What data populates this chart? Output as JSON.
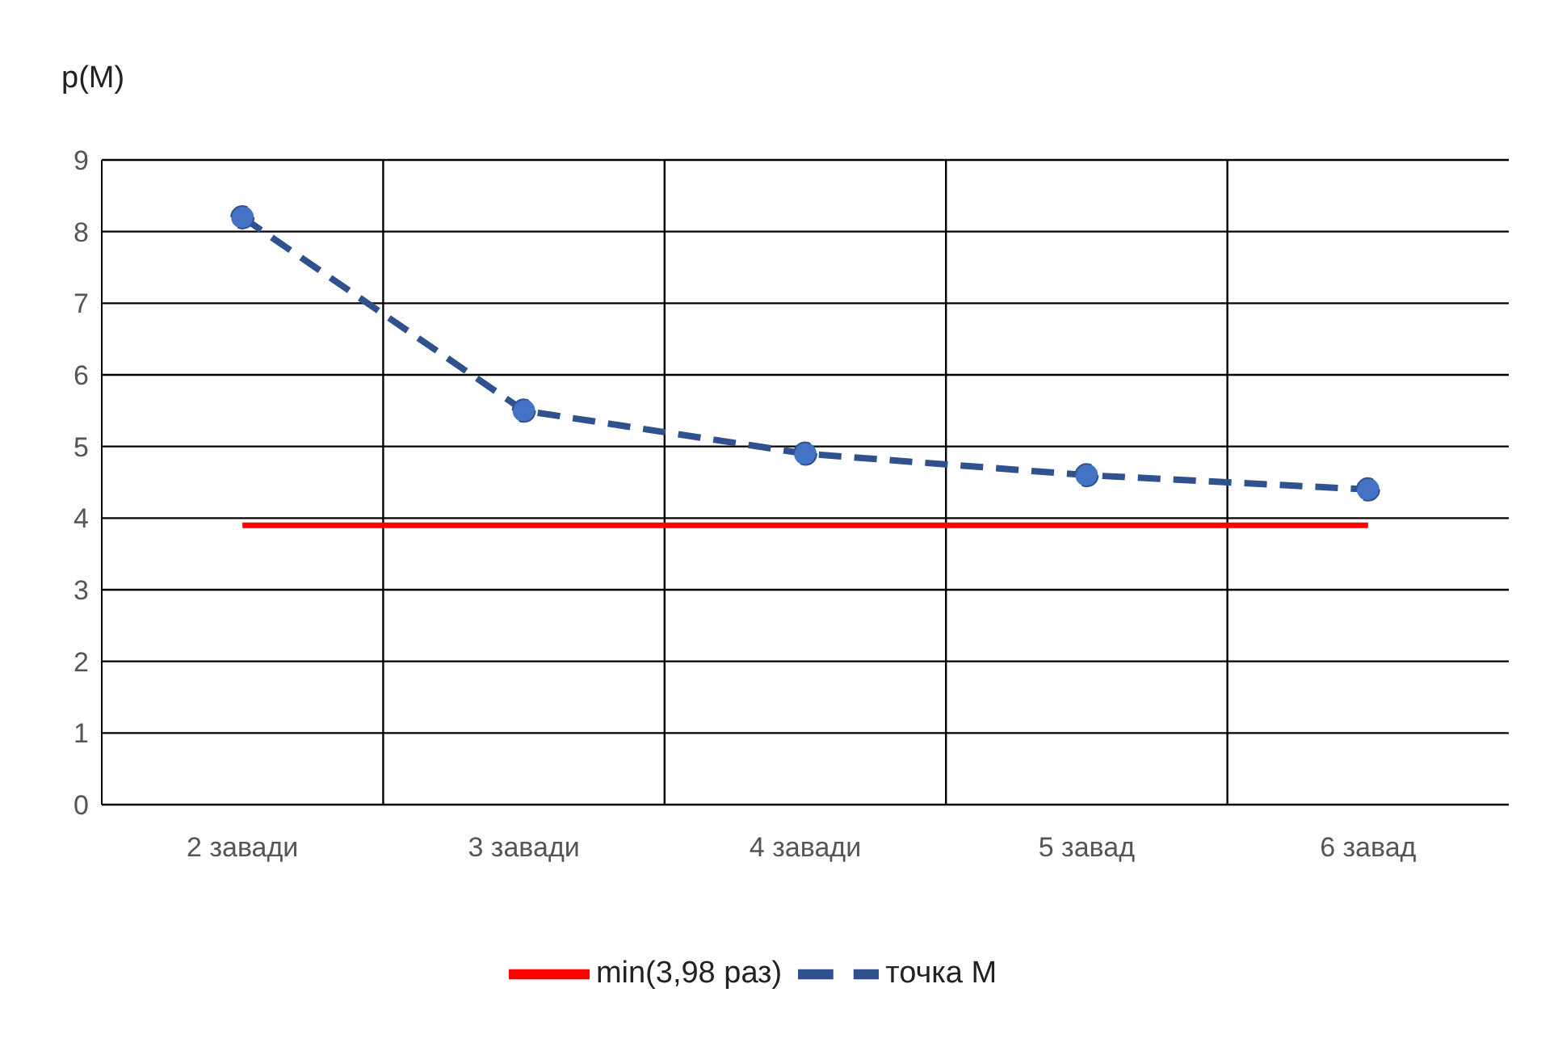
{
  "chart_data": {
    "type": "line",
    "ylabel": "p(M)",
    "categories": [
      "2 завади",
      "3 завади",
      "4 завади",
      "5 завад",
      "6 завад"
    ],
    "series": [
      {
        "name": "точка М",
        "color": "#2f528f",
        "values": [
          8.2,
          5.5,
          4.9,
          4.6,
          4.4
        ],
        "line_style": "dashed",
        "marker": "circle"
      },
      {
        "name": "min(3,98 раз)",
        "color": "#ff0000",
        "values": [
          3.9,
          3.9,
          3.9,
          3.9,
          3.9
        ],
        "line_style": "solid",
        "marker": "none"
      }
    ],
    "ylim": [
      0,
      9
    ],
    "yticks": [
      0,
      1,
      2,
      3,
      4,
      5,
      6,
      7,
      8,
      9
    ],
    "grid": true,
    "legend": "bottom"
  }
}
